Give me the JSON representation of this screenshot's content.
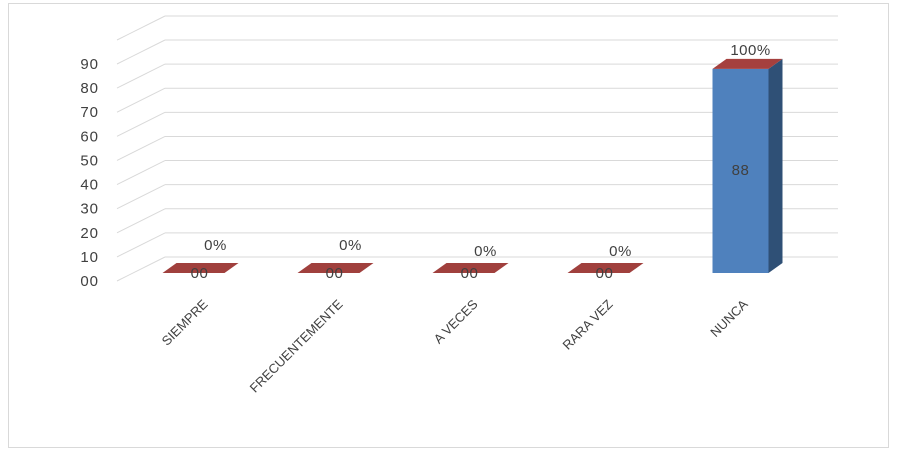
{
  "chart_data": {
    "type": "bar",
    "style": "3d-column",
    "categories": [
      "SIEMPRE",
      "FRECUENTEMENTE",
      "A VECES",
      "RARA VEZ",
      "NUNCA"
    ],
    "values": [
      0,
      0,
      0,
      0,
      88
    ],
    "value_labels": [
      "00",
      "00",
      "00",
      "00",
      "88"
    ],
    "percent_labels": [
      "0%",
      "0%",
      "0%",
      "0%",
      "100%"
    ],
    "yticks": [
      "00",
      "10",
      "20",
      "30",
      "40",
      "50",
      "60",
      "70",
      "80",
      "90"
    ],
    "ylim": [
      0,
      90
    ],
    "grid": true,
    "title": "",
    "xlabel": "",
    "ylabel": "",
    "colors": {
      "bar_front": "#4f81bd",
      "bar_side": "#2f5076",
      "bar_top": "#a5403e",
      "zero_bar": "#a0403d",
      "grid": "#d9d9d9",
      "text": "#404040"
    }
  }
}
